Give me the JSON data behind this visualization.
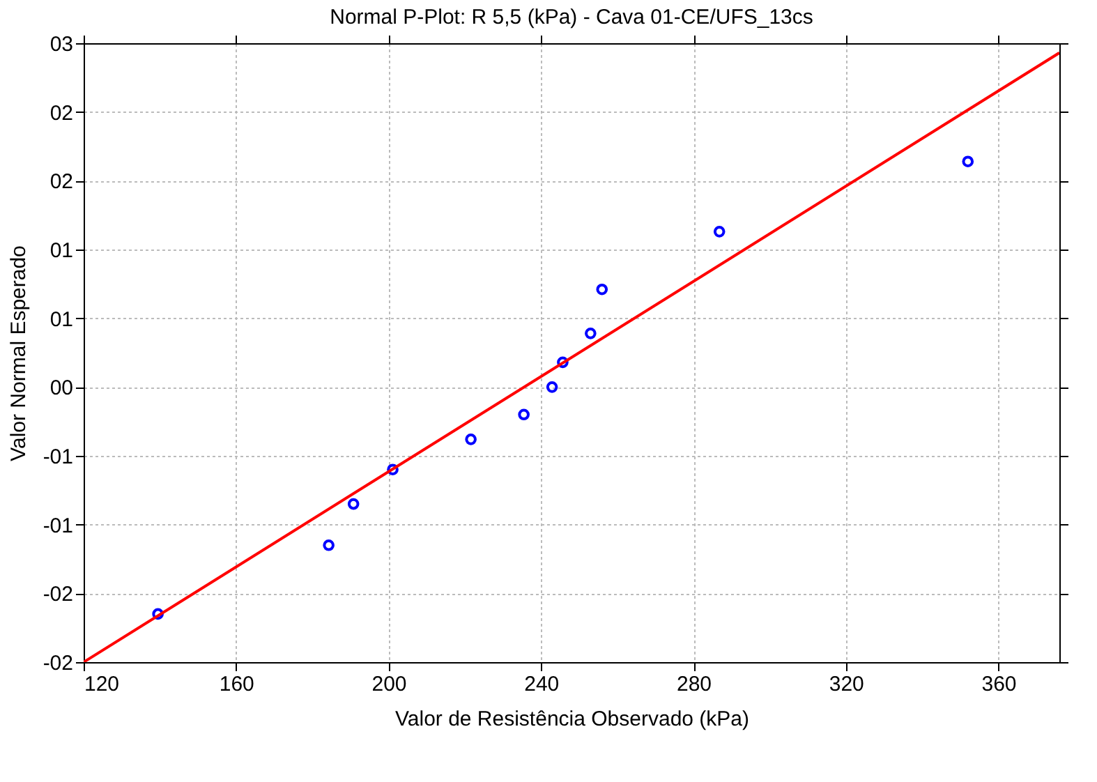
{
  "chart_data": {
    "type": "scatter",
    "title": "Normal P-Plot: R 5,5 (kPa) - Cava 01-CE/UFS_13cs",
    "xlabel": "Valor de Resistência Observado (kPa)",
    "ylabel": "Valor Normal Esperado",
    "x": [
      139.5,
      184.3,
      190.8,
      201.1,
      221.6,
      235.5,
      242.9,
      245.7,
      253.0,
      256.0,
      286.8,
      352.0
    ],
    "series": [
      {
        "color": "#0000ff",
        "marker": "circle",
        "values": [
          -1.65,
          -1.15,
          -0.85,
          -0.6,
          -0.38,
          -0.2,
          0.0,
          0.18,
          0.39,
          0.71,
          1.13,
          1.64
        ]
      },
      {
        "type": "line",
        "color": "#ff0000",
        "line_style": "solid",
        "x": [
          120,
          376
        ],
        "values": [
          -2.0,
          2.43
        ]
      }
    ],
    "xlim": [
      120,
      376
    ],
    "ylim": [
      -2.0,
      2.5
    ],
    "xticks": [
      120,
      160,
      200,
      240,
      280,
      320,
      360
    ],
    "yticks": [
      {
        "value": -2.0,
        "label": "-02"
      },
      {
        "value": -1.5,
        "label": "-02"
      },
      {
        "value": -1.0,
        "label": "-01"
      },
      {
        "value": -0.5,
        "label": "-01"
      },
      {
        "value": 0.0,
        "label": "00"
      },
      {
        "value": 0.5,
        "label": "01"
      },
      {
        "value": 1.0,
        "label": "01"
      },
      {
        "value": 1.5,
        "label": "02"
      },
      {
        "value": 2.0,
        "label": "02"
      },
      {
        "value": 2.5,
        "label": "03"
      }
    ],
    "grid": true
  }
}
